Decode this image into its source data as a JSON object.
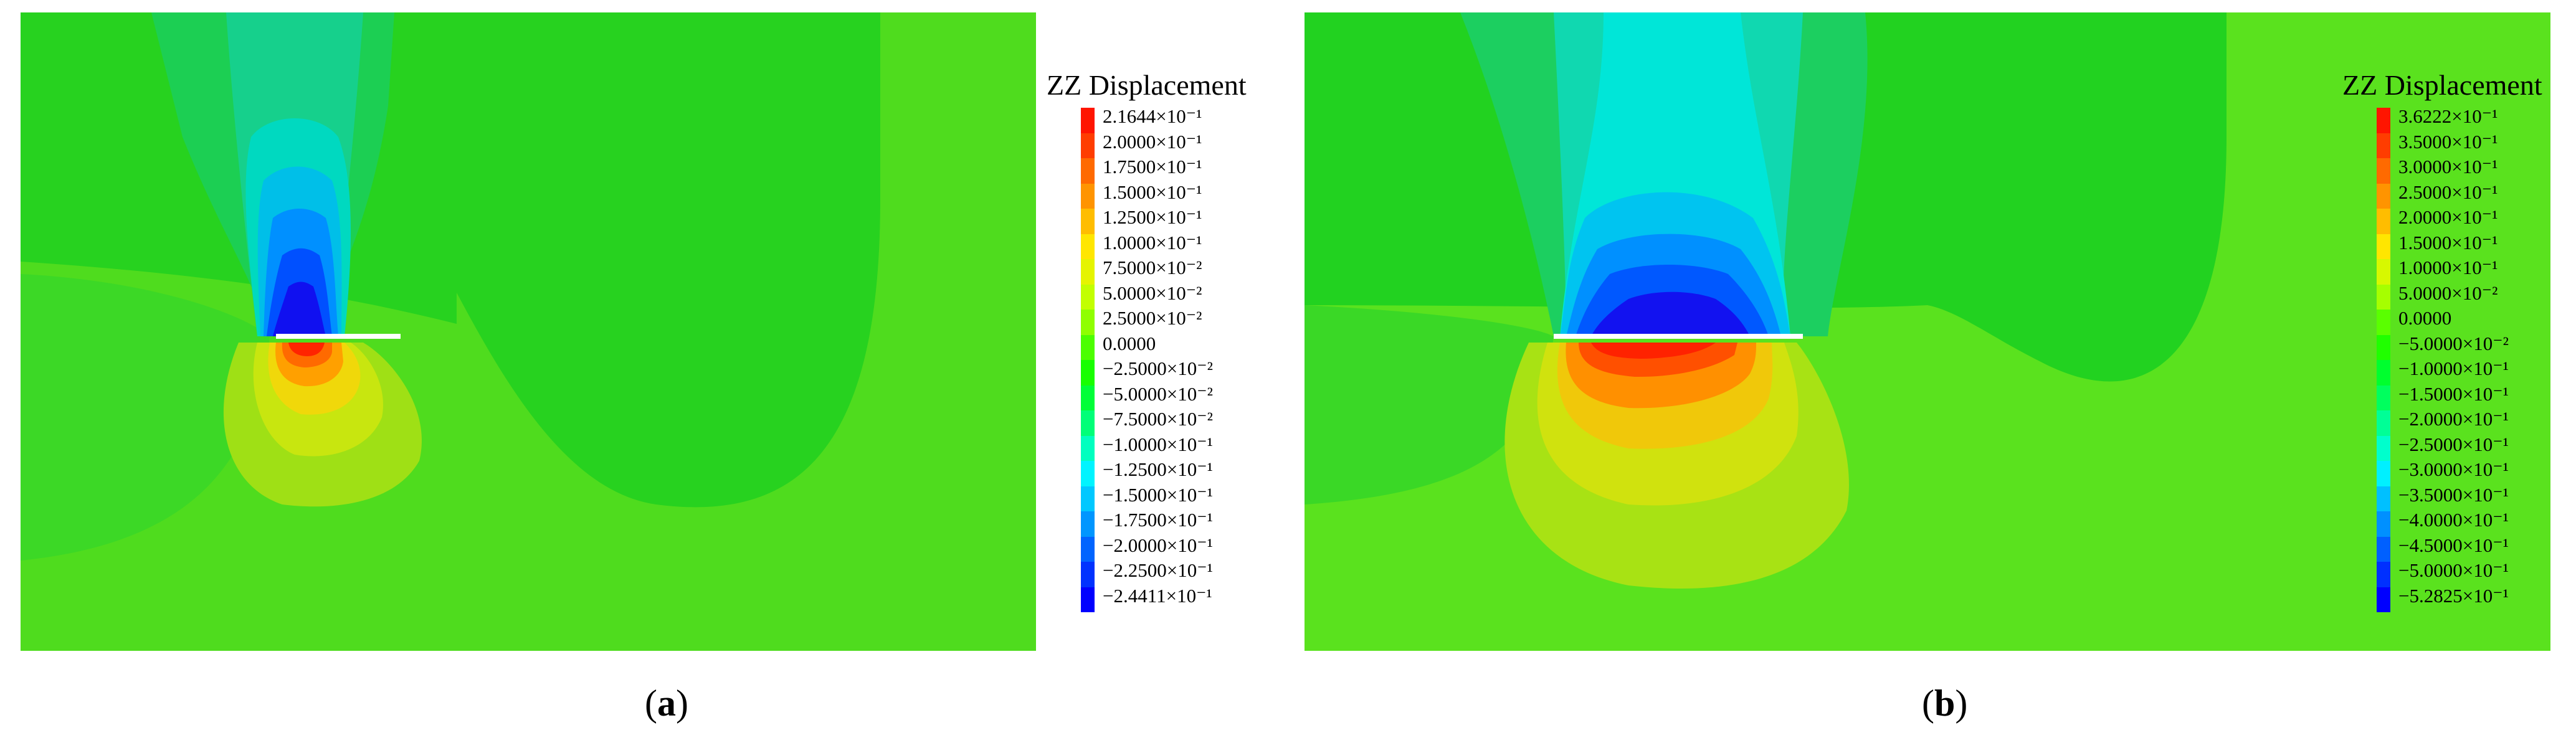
{
  "panels": [
    {
      "caption_letter": "a",
      "legend": {
        "title": "ZZ Displacement",
        "labels": [
          "2.1644×10⁻¹",
          "2.0000×10⁻¹",
          "1.7500×10⁻¹",
          "1.5000×10⁻¹",
          "1.2500×10⁻¹",
          "1.0000×10⁻¹",
          "7.5000×10⁻²",
          "5.0000×10⁻²",
          "2.5000×10⁻²",
          "0.0000",
          "−2.5000×10⁻²",
          "−5.0000×10⁻²",
          "−7.5000×10⁻²",
          "−1.0000×10⁻¹",
          "−1.2500×10⁻¹",
          "−1.5000×10⁻¹",
          "−1.7500×10⁻¹",
          "−2.0000×10⁻¹",
          "−2.2500×10⁻¹",
          "−2.4411×10⁻¹"
        ],
        "colors": [
          "#ff1500",
          "#ff3d00",
          "#ff6a00",
          "#ff9400",
          "#ffbd00",
          "#ffe600",
          "#e5f400",
          "#c2ff00",
          "#8fff00",
          "#4cff00",
          "#18ff00",
          "#00ff38",
          "#00ff78",
          "#00ffbf",
          "#00f4ff",
          "#00c8ff",
          "#0096ff",
          "#0064ff",
          "#0032ff",
          "#0000ff"
        ]
      }
    },
    {
      "caption_letter": "b",
      "legend": {
        "title": "ZZ Displacement",
        "labels": [
          "3.6222×10⁻¹",
          "3.5000×10⁻¹",
          "3.0000×10⁻¹",
          "2.5000×10⁻¹",
          "2.0000×10⁻¹",
          "1.5000×10⁻¹",
          "1.0000×10⁻¹",
          "5.0000×10⁻²",
          "0.0000",
          "−5.0000×10⁻²",
          "−1.0000×10⁻¹",
          "−1.5000×10⁻¹",
          "−2.0000×10⁻¹",
          "−2.5000×10⁻¹",
          "−3.0000×10⁻¹",
          "−3.5000×10⁻¹",
          "−4.0000×10⁻¹",
          "−4.5000×10⁻¹",
          "−5.0000×10⁻¹",
          "−5.2825×10⁻¹"
        ],
        "colors": [
          "#ff1500",
          "#ff3d00",
          "#ff6a00",
          "#ff9400",
          "#ffbd00",
          "#ffe600",
          "#d7f800",
          "#a6ff00",
          "#5aff00",
          "#20ff00",
          "#00ff2e",
          "#00ff5e",
          "#00ff96",
          "#00ffcc",
          "#00f0ff",
          "#00c0ff",
          "#0090ff",
          "#0060ff",
          "#0030ff",
          "#0000ff"
        ]
      }
    }
  ]
}
